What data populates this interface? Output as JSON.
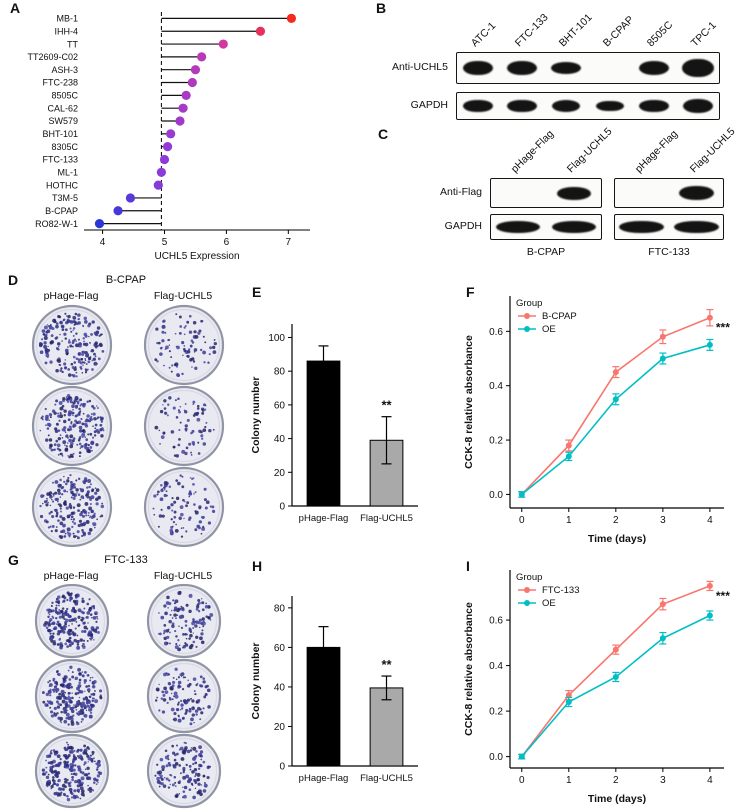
{
  "styles": {
    "plate_fill": "#e9e9f1",
    "plate_rim": "#9095a5",
    "plate_inner_ring": "#d9d9e6",
    "colony_colors": [
      "#2d2d7e",
      "#3a3a94",
      "#4747a6",
      "#232364"
    ],
    "bar_black": "#000000",
    "bar_gray": "#a9a9a9",
    "series_red": "#F8766D",
    "series_teal": "#00BFC4"
  },
  "panels": {
    "A": {
      "label": "A",
      "chart_data": {
        "type": "lollipop",
        "xlabel": "UCHL5 Expression",
        "xticks": [
          4,
          5,
          6,
          7
        ],
        "xlim": [
          3.7,
          7.35
        ],
        "baseline": 4.95,
        "grid": false,
        "categories": [
          "MB-1",
          "IHH-4",
          "TT",
          "TT2609-C02",
          "ASH-3",
          "FTC-238",
          "8505C",
          "CAL-62",
          "SW579",
          "BHT-101",
          "8305C",
          "FTC-133",
          "ML-1",
          "HOTHC",
          "T3M-5",
          "B-CPAP",
          "RO82-W-1"
        ],
        "values": [
          7.05,
          6.55,
          5.95,
          5.6,
          5.5,
          5.45,
          5.35,
          5.3,
          5.25,
          5.1,
          5.05,
          5.0,
          4.95,
          4.9,
          4.45,
          4.25,
          3.95
        ],
        "color_scale": [
          "#2b36d8",
          "#8f3bd9",
          "#d6399d",
          "#f42a1f"
        ]
      }
    },
    "B": {
      "label": "B",
      "lanes": [
        "ATC-1",
        "FTC-133",
        "BHT-101",
        "B-CPAP",
        "8505C",
        "TPC-1"
      ],
      "rows": [
        {
          "label": "Anti-UCHL5",
          "bands": [
            1.0,
            1.0,
            0.8,
            0,
            0.95,
            1.3
          ]
        },
        {
          "label": "GAPDH",
          "bands": [
            1.0,
            1.05,
            0.95,
            0.9,
            1.0,
            1.1
          ]
        }
      ]
    },
    "C": {
      "label": "C",
      "lanes": [
        "pHage-Flag",
        "Flag-UCHL5",
        "pHage-Flag",
        "Flag-UCHL5"
      ],
      "rows": [
        {
          "label": "Anti-Flag",
          "bands": [
            0,
            1.0,
            0,
            1.05
          ]
        },
        {
          "label": "GAPDH",
          "bands": [
            1,
            1,
            1,
            1
          ]
        }
      ],
      "groups": [
        "B-CPAP",
        "FTC-133"
      ]
    },
    "D": {
      "label": "D",
      "title": "B-CPAP",
      "columns": [
        "pHage-Flag",
        "Flag-UCHL5"
      ],
      "plate_colony_counts": [
        [
          210,
          85
        ],
        [
          220,
          75
        ],
        [
          200,
          90
        ]
      ]
    },
    "E": {
      "label": "E",
      "chart_data": {
        "type": "bar",
        "ylabel": "Colony number",
        "categories": [
          "pHage-Flag",
          "Flag-UCHL5"
        ],
        "values": [
          86,
          39
        ],
        "errors": [
          9,
          14
        ],
        "yticks": [
          0,
          20,
          40,
          60,
          80,
          100
        ],
        "ylim": [
          0,
          108
        ],
        "bar_colors": [
          "#000000",
          "#a9a9a9"
        ],
        "significance": "**"
      }
    },
    "F": {
      "label": "F",
      "chart_data": {
        "type": "line",
        "legend_title": "Group",
        "legend_position": "top-left",
        "xlabel": "Time (days)",
        "ylabel": "CCK-8 relative absorbance",
        "x": [
          0,
          1,
          2,
          3,
          4
        ],
        "xticks": [
          0,
          1,
          2,
          3,
          4
        ],
        "yticks": [
          0.0,
          0.2,
          0.4,
          0.6
        ],
        "ylim": [
          -0.05,
          0.73
        ],
        "series": [
          {
            "name": "B-CPAP",
            "color": "#F8766D",
            "values": [
              0.0,
              0.18,
              0.45,
              0.58,
              0.65
            ],
            "errors": [
              0.01,
              0.02,
              0.02,
              0.025,
              0.03
            ]
          },
          {
            "name": "OE",
            "color": "#00BFC4",
            "values": [
              0.0,
              0.14,
              0.35,
              0.5,
              0.55
            ],
            "errors": [
              0.01,
              0.015,
              0.02,
              0.02,
              0.02
            ]
          }
        ],
        "significance": "***"
      }
    },
    "G": {
      "label": "G",
      "title": "FTC-133",
      "columns": [
        "pHage-Flag",
        "Flag-UCHL5"
      ],
      "plate_colony_counts": [
        [
          230,
          120
        ],
        [
          215,
          110
        ],
        [
          240,
          130
        ]
      ]
    },
    "H": {
      "label": "H",
      "chart_data": {
        "type": "bar",
        "ylabel": "Colony number",
        "categories": [
          "pHage-Flag",
          "Flag-UCHL5"
        ],
        "values": [
          60,
          39.5
        ],
        "errors": [
          10.5,
          6
        ],
        "yticks": [
          0,
          20,
          40,
          60,
          80
        ],
        "ylim": [
          0,
          86
        ],
        "bar_colors": [
          "#000000",
          "#a9a9a9"
        ],
        "significance": "**"
      }
    },
    "I": {
      "label": "I",
      "chart_data": {
        "type": "line",
        "legend_title": "Group",
        "legend_position": "top-left",
        "xlabel": "Time (days)",
        "ylabel": "CCK-8 relative absorbance",
        "x": [
          0,
          1,
          2,
          3,
          4
        ],
        "xticks": [
          0,
          1,
          2,
          3,
          4
        ],
        "yticks": [
          0.0,
          0.2,
          0.4,
          0.6
        ],
        "ylim": [
          -0.05,
          0.82
        ],
        "series": [
          {
            "name": "FTC-133",
            "color": "#F8766D",
            "values": [
              0.0,
              0.27,
              0.47,
              0.67,
              0.75
            ],
            "errors": [
              0.01,
              0.02,
              0.02,
              0.025,
              0.02
            ]
          },
          {
            "name": "OE",
            "color": "#00BFC4",
            "values": [
              0.0,
              0.24,
              0.35,
              0.52,
              0.62
            ],
            "errors": [
              0.01,
              0.02,
              0.02,
              0.025,
              0.02
            ]
          }
        ],
        "significance": "***"
      }
    }
  }
}
